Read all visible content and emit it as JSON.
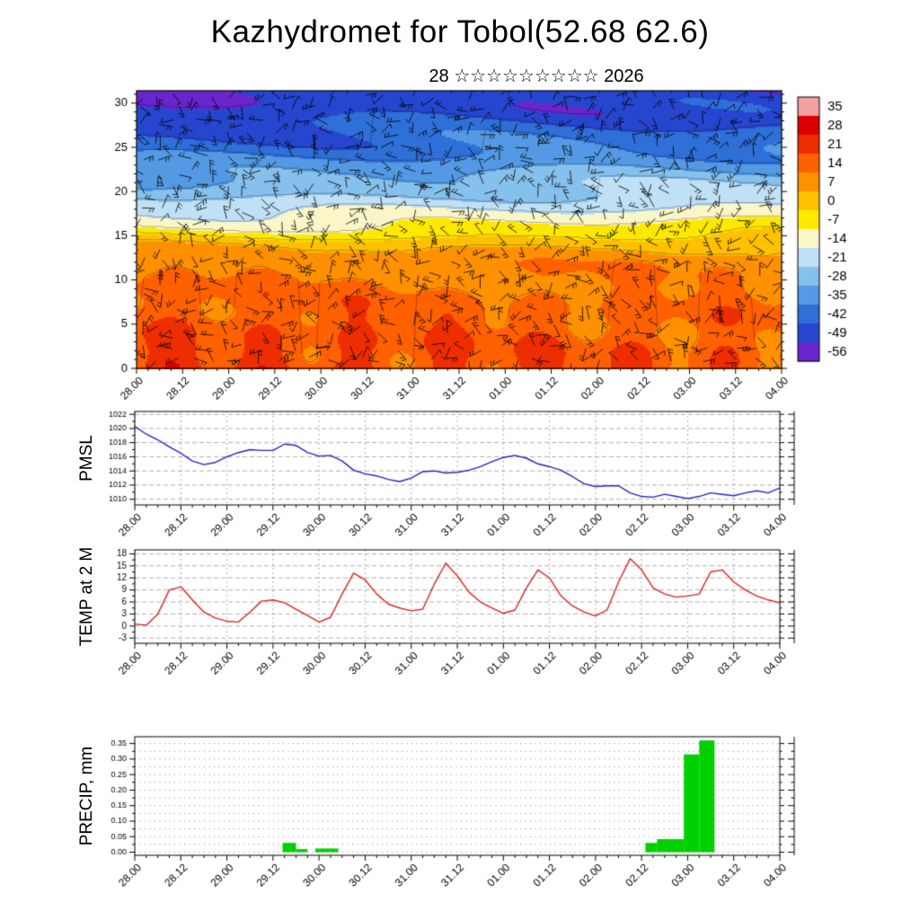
{
  "title": "Kazhydromet for Tobol(52.68 62.6)",
  "subtitle": "28 ☆☆☆☆☆☆☆☆☆ 2026",
  "time_axis": {
    "labels": [
      "28.00",
      "28.12",
      "29.00",
      "29.12",
      "30.00",
      "30.12",
      "31.00",
      "31.12",
      "01.00",
      "01.12",
      "02.00",
      "02.12",
      "03.00",
      "03.12",
      "04.00"
    ],
    "hours_range": [
      0,
      168
    ],
    "major_step_hours": 12,
    "minor_step_hours": 3,
    "sample_hours": [
      0,
      3,
      6,
      9,
      12,
      15,
      18,
      21,
      24,
      27,
      30,
      33,
      36,
      39,
      42,
      45,
      48,
      51,
      54,
      57,
      60,
      63,
      66,
      69,
      72,
      75,
      78,
      81,
      84,
      87,
      90,
      93,
      96,
      99,
      102,
      105,
      108,
      111,
      114,
      117,
      120,
      123,
      126,
      129,
      132,
      135,
      138,
      141,
      144,
      147,
      150,
      153,
      156,
      159,
      162,
      165,
      168
    ]
  },
  "chart_data": [
    {
      "name": "upper-air-temperature-wind-cross-section",
      "type": "heatmap",
      "ylabel": "",
      "yticks": [
        0,
        5,
        10,
        15,
        20,
        25,
        30
      ],
      "ytick_labels": [
        "0",
        "5",
        "10",
        "15",
        "20",
        "25",
        "30"
      ],
      "ylim": [
        0,
        31.4
      ],
      "overlay": "wind-barbs",
      "colorbar_labels": [
        "35",
        "28",
        "21",
        "14",
        "7",
        "0",
        "-7",
        "-14",
        "-21",
        "-28",
        "-35",
        "-42",
        "-49",
        "-56"
      ],
      "colorbar_colors": [
        "#f2a0a0",
        "#dd0000",
        "#ee2e00",
        "#ff6000",
        "#ff9000",
        "#ffc000",
        "#ffe800",
        "#fbf6c8",
        "#bfe0f5",
        "#86c0ec",
        "#5499e3",
        "#2f6fd8",
        "#2746cf",
        "#6a25cd"
      ]
    },
    {
      "name": "pmsl",
      "type": "line",
      "ylabel": "PMSL",
      "color": "#2222cc",
      "yticks": [
        1010,
        1012,
        1014,
        1016,
        1018,
        1020,
        1022
      ],
      "ytick_labels": [
        "1010",
        "1012",
        "1014",
        "1016",
        "1018",
        "1020",
        "1022"
      ],
      "ylim": [
        1009.2,
        1022.4
      ],
      "values": [
        1020.3,
        1019.2,
        1018.4,
        1017.4,
        1016.5,
        1015.4,
        1014.9,
        1015.2,
        1016.0,
        1016.6,
        1017.0,
        1016.9,
        1016.9,
        1017.8,
        1017.6,
        1016.6,
        1016.1,
        1016.2,
        1015.4,
        1014.1,
        1013.6,
        1013.3,
        1012.8,
        1012.5,
        1013.0,
        1013.9,
        1014.0,
        1013.7,
        1013.8,
        1014.1,
        1014.6,
        1015.3,
        1015.9,
        1016.2,
        1015.8,
        1015.0,
        1014.6,
        1014.1,
        1013.2,
        1012.2,
        1011.8,
        1011.9,
        1011.9,
        1010.9,
        1010.4,
        1010.3,
        1010.7,
        1010.4,
        1010.1,
        1010.4,
        1010.9,
        1010.7,
        1010.5,
        1010.9,
        1011.2,
        1010.9,
        1011.6
      ]
    },
    {
      "name": "temp-2m",
      "type": "line",
      "ylabel": "TEMP at 2 M",
      "color": "#dd2222",
      "yticks": [
        -3,
        0,
        3,
        6,
        9,
        12,
        15,
        18
      ],
      "ytick_labels": [
        "-3",
        "0",
        "3",
        "6",
        "9",
        "12",
        "15",
        "18"
      ],
      "ylim": [
        -4.3,
        19.0
      ],
      "values": [
        0.5,
        0.2,
        3.0,
        9.0,
        9.8,
        6.5,
        3.5,
        2.0,
        1.2,
        1.0,
        3.5,
        6.2,
        6.5,
        5.8,
        4.2,
        2.6,
        1.0,
        2.2,
        8.0,
        13.2,
        11.5,
        8.0,
        5.5,
        4.5,
        3.8,
        4.2,
        10.5,
        15.7,
        12.5,
        8.5,
        6.0,
        4.5,
        3.2,
        4.0,
        9.5,
        14.0,
        12.0,
        7.5,
        5.0,
        3.5,
        2.5,
        4.0,
        11.0,
        16.8,
        14.0,
        9.5,
        8.0,
        7.2,
        7.5,
        8.0,
        13.5,
        14.0,
        11.0,
        9.0,
        7.5,
        6.5,
        5.8
      ]
    },
    {
      "name": "precip",
      "type": "bar",
      "ylabel": "PRECIP, mm",
      "color": "#00d000",
      "yticks": [
        0.0,
        0.05,
        0.1,
        0.15,
        0.2,
        0.25,
        0.3,
        0.35
      ],
      "ytick_labels": [
        "0.00",
        "0.05",
        "0.10",
        "0.15",
        "0.20",
        "0.25",
        "0.30",
        "0.35"
      ],
      "ylim": [
        -0.01,
        0.372
      ],
      "bars": [
        {
          "t0": 38.5,
          "t1": 42,
          "v": 0.03
        },
        {
          "t0": 42,
          "t1": 45,
          "v": 0.01
        },
        {
          "t0": 47,
          "t1": 53,
          "v": 0.012
        },
        {
          "t0": 133,
          "t1": 136,
          "v": 0.03
        },
        {
          "t0": 136,
          "t1": 143,
          "v": 0.042
        },
        {
          "t0": 143,
          "t1": 147,
          "v": 0.315
        },
        {
          "t0": 147,
          "t1": 151,
          "v": 0.36
        }
      ]
    }
  ]
}
